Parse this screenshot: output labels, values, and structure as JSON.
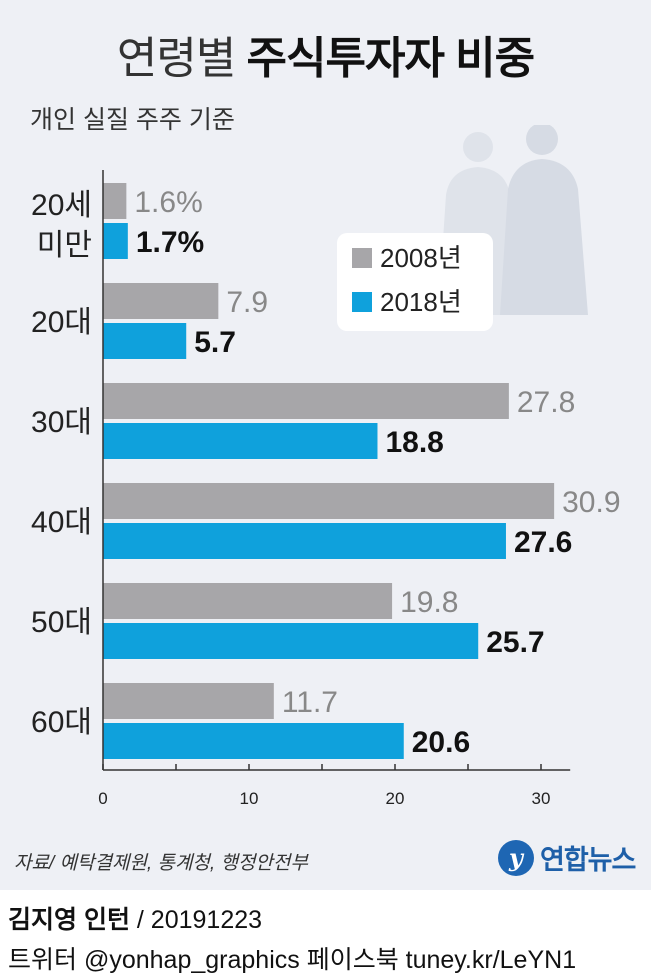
{
  "header": {
    "title_light": "연령별",
    "title_bold": "주식투자자 비중",
    "subtitle": "개인 실질 주주 기준"
  },
  "chart_data": {
    "type": "bar",
    "orientation": "horizontal",
    "categories": [
      "20세 미만",
      "20대",
      "30대",
      "40대",
      "50대",
      "60대"
    ],
    "category_lines": [
      [
        "20세",
        "미만"
      ],
      [
        "20대"
      ],
      [
        "30대"
      ],
      [
        "40대"
      ],
      [
        "50대"
      ],
      [
        "60대"
      ]
    ],
    "series": [
      {
        "name": "2008년",
        "values": [
          1.6,
          7.9,
          27.8,
          30.9,
          19.8,
          11.7
        ],
        "labels": [
          "1.6%",
          "7.9",
          "27.8",
          "30.9",
          "19.8",
          "11.7"
        ],
        "color": "#a7a6a9"
      },
      {
        "name": "2018년",
        "values": [
          1.7,
          5.7,
          18.8,
          27.6,
          25.7,
          20.6
        ],
        "labels": [
          "1.7%",
          "5.7",
          "18.8",
          "27.6",
          "25.7",
          "20.6"
        ],
        "color": "#0fa1dc"
      }
    ],
    "xlim": [
      0,
      30
    ],
    "xticks": [
      "0",
      "10",
      "20",
      "30"
    ],
    "legend_position": "top-right",
    "grid": false
  },
  "colors": {
    "background": "#eef0f5",
    "bar_2008": "#a7a6a9",
    "bar_2018": "#0fa1dc"
  },
  "source": "자료/ 예탁결제원, 통계청, 행정안전부",
  "logo": {
    "text": "연합뉴스",
    "mark": "y"
  },
  "footer": {
    "author": "김지영 인턴",
    "date": "/ 20191223",
    "social": "트위터 @yonhap_graphics  페이스북 tuney.kr/LeYN1"
  }
}
